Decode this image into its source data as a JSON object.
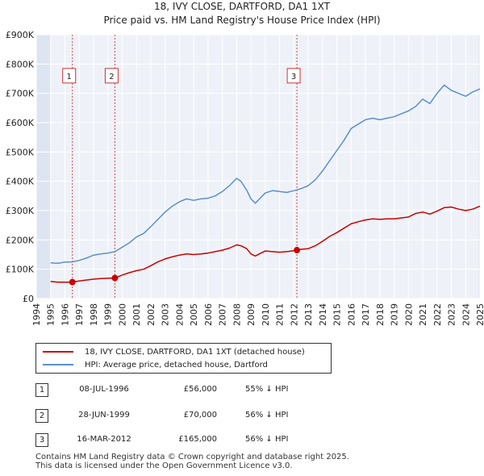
{
  "title_line1": "18, IVY CLOSE, DARTFORD, DA1 1XT",
  "title_line2": "Price paid vs. HM Land Registry's House Price Index (HPI)",
  "chart_data": {
    "type": "line",
    "title": "18, IVY CLOSE, DARTFORD, DA1 1XT — Price paid vs. HM Land Registry's House Price Index (HPI)",
    "xlabel": "",
    "ylabel": "",
    "xlim": [
      1994,
      2025
    ],
    "ylim": [
      0,
      900000
    ],
    "y_ticks": [
      {
        "value": 0,
        "label": "£0"
      },
      {
        "value": 100000,
        "label": "£100K"
      },
      {
        "value": 200000,
        "label": "£200K"
      },
      {
        "value": 300000,
        "label": "£300K"
      },
      {
        "value": 400000,
        "label": "£400K"
      },
      {
        "value": 500000,
        "label": "£500K"
      },
      {
        "value": 600000,
        "label": "£600K"
      },
      {
        "value": 700000,
        "label": "£700K"
      },
      {
        "value": 800000,
        "label": "£800K"
      },
      {
        "value": 900000,
        "label": "£900K"
      }
    ],
    "x_ticks": [
      "1994",
      "1995",
      "1996",
      "1997",
      "1998",
      "1999",
      "2000",
      "2001",
      "2002",
      "2003",
      "2004",
      "2005",
      "2006",
      "2007",
      "2008",
      "2009",
      "2010",
      "2011",
      "2012",
      "2013",
      "2014",
      "2015",
      "2016",
      "2017",
      "2018",
      "2019",
      "2020",
      "2021",
      "2022",
      "2023",
      "2024",
      "2025"
    ],
    "grid": true,
    "series": [
      {
        "name": "18, IVY CLOSE, DARTFORD, DA1 1XT (detached house)",
        "color": "#cc0000",
        "points": [
          [
            1995.0,
            58000
          ],
          [
            1995.5,
            56000
          ],
          [
            1996.0,
            56000
          ],
          [
            1996.52,
            56000
          ],
          [
            1997.0,
            60000
          ],
          [
            1997.5,
            63000
          ],
          [
            1998.0,
            66000
          ],
          [
            1998.5,
            68000
          ],
          [
            1999.0,
            69000
          ],
          [
            1999.49,
            70000
          ],
          [
            2000.0,
            80000
          ],
          [
            2000.5,
            88000
          ],
          [
            2001.0,
            95000
          ],
          [
            2001.5,
            100000
          ],
          [
            2002.0,
            112000
          ],
          [
            2002.5,
            125000
          ],
          [
            2003.0,
            135000
          ],
          [
            2003.5,
            142000
          ],
          [
            2004.0,
            148000
          ],
          [
            2004.5,
            152000
          ],
          [
            2005.0,
            150000
          ],
          [
            2005.5,
            152000
          ],
          [
            2006.0,
            155000
          ],
          [
            2006.5,
            160000
          ],
          [
            2007.0,
            165000
          ],
          [
            2007.5,
            172000
          ],
          [
            2008.0,
            183000
          ],
          [
            2008.3,
            180000
          ],
          [
            2008.7,
            170000
          ],
          [
            2009.0,
            152000
          ],
          [
            2009.3,
            145000
          ],
          [
            2009.7,
            155000
          ],
          [
            2010.0,
            162000
          ],
          [
            2010.5,
            160000
          ],
          [
            2011.0,
            158000
          ],
          [
            2011.5,
            160000
          ],
          [
            2012.0,
            163000
          ],
          [
            2012.21,
            165000
          ],
          [
            2012.5,
            168000
          ],
          [
            2013.0,
            170000
          ],
          [
            2013.5,
            180000
          ],
          [
            2014.0,
            195000
          ],
          [
            2014.5,
            212000
          ],
          [
            2015.0,
            225000
          ],
          [
            2015.5,
            240000
          ],
          [
            2016.0,
            255000
          ],
          [
            2016.5,
            262000
          ],
          [
            2017.0,
            268000
          ],
          [
            2017.5,
            272000
          ],
          [
            2018.0,
            270000
          ],
          [
            2018.5,
            272000
          ],
          [
            2019.0,
            272000
          ],
          [
            2019.5,
            275000
          ],
          [
            2020.0,
            278000
          ],
          [
            2020.5,
            290000
          ],
          [
            2021.0,
            295000
          ],
          [
            2021.5,
            288000
          ],
          [
            2022.0,
            298000
          ],
          [
            2022.5,
            310000
          ],
          [
            2023.0,
            312000
          ],
          [
            2023.5,
            305000
          ],
          [
            2024.0,
            300000
          ],
          [
            2024.5,
            305000
          ],
          [
            2025.0,
            315000
          ]
        ]
      },
      {
        "name": "HPI: Average price, detached house, Dartford",
        "color": "#5b8fcf",
        "points": [
          [
            1995.0,
            122000
          ],
          [
            1995.5,
            120000
          ],
          [
            1996.0,
            124000
          ],
          [
            1996.5,
            125000
          ],
          [
            1997.0,
            130000
          ],
          [
            1997.5,
            138000
          ],
          [
            1998.0,
            148000
          ],
          [
            1998.5,
            152000
          ],
          [
            1999.0,
            155000
          ],
          [
            1999.5,
            160000
          ],
          [
            2000.0,
            175000
          ],
          [
            2000.5,
            190000
          ],
          [
            2001.0,
            210000
          ],
          [
            2001.5,
            222000
          ],
          [
            2002.0,
            245000
          ],
          [
            2002.5,
            270000
          ],
          [
            2003.0,
            295000
          ],
          [
            2003.5,
            315000
          ],
          [
            2004.0,
            330000
          ],
          [
            2004.5,
            340000
          ],
          [
            2005.0,
            335000
          ],
          [
            2005.5,
            340000
          ],
          [
            2006.0,
            342000
          ],
          [
            2006.5,
            350000
          ],
          [
            2007.0,
            365000
          ],
          [
            2007.5,
            385000
          ],
          [
            2008.0,
            410000
          ],
          [
            2008.3,
            400000
          ],
          [
            2008.7,
            370000
          ],
          [
            2009.0,
            340000
          ],
          [
            2009.3,
            325000
          ],
          [
            2009.7,
            345000
          ],
          [
            2010.0,
            360000
          ],
          [
            2010.5,
            368000
          ],
          [
            2011.0,
            365000
          ],
          [
            2011.5,
            362000
          ],
          [
            2012.0,
            368000
          ],
          [
            2012.5,
            375000
          ],
          [
            2013.0,
            385000
          ],
          [
            2013.5,
            405000
          ],
          [
            2014.0,
            435000
          ],
          [
            2014.5,
            470000
          ],
          [
            2015.0,
            505000
          ],
          [
            2015.5,
            540000
          ],
          [
            2016.0,
            580000
          ],
          [
            2016.5,
            595000
          ],
          [
            2017.0,
            610000
          ],
          [
            2017.5,
            615000
          ],
          [
            2018.0,
            610000
          ],
          [
            2018.5,
            615000
          ],
          [
            2019.0,
            620000
          ],
          [
            2019.5,
            630000
          ],
          [
            2020.0,
            640000
          ],
          [
            2020.5,
            655000
          ],
          [
            2021.0,
            680000
          ],
          [
            2021.5,
            665000
          ],
          [
            2022.0,
            700000
          ],
          [
            2022.5,
            728000
          ],
          [
            2023.0,
            710000
          ],
          [
            2023.5,
            700000
          ],
          [
            2024.0,
            690000
          ],
          [
            2024.5,
            705000
          ],
          [
            2025.0,
            715000
          ]
        ]
      }
    ],
    "sales": [
      {
        "label": "1",
        "x": 1996.52,
        "y": 56000
      },
      {
        "label": "2",
        "x": 1999.49,
        "y": 70000
      },
      {
        "label": "3",
        "x": 2012.21,
        "y": 165000
      }
    ],
    "sale_box_value": 760000
  },
  "legend": {
    "property": "18, IVY CLOSE, DARTFORD, DA1 1XT (detached house)",
    "hpi": "HPI: Average price, detached house, Dartford"
  },
  "sales_table": [
    {
      "num": "1",
      "date": "08-JUL-1996",
      "price": "£56,000",
      "hpi": "55% ↓ HPI"
    },
    {
      "num": "2",
      "date": "28-JUN-1999",
      "price": "£70,000",
      "hpi": "56% ↓ HPI"
    },
    {
      "num": "3",
      "date": "16-MAR-2012",
      "price": "£165,000",
      "hpi": "56% ↓ HPI"
    }
  ],
  "footer": {
    "line1": "Contains HM Land Registry data © Crown copyright and database right 2025.",
    "line2": "This data is licensed under the Open Government Licence v3.0."
  },
  "colors": {
    "property": "#cc0000",
    "hpi": "#5b8fcf",
    "plot_bg": "#eef2f8",
    "shade": "#dde5f2"
  }
}
